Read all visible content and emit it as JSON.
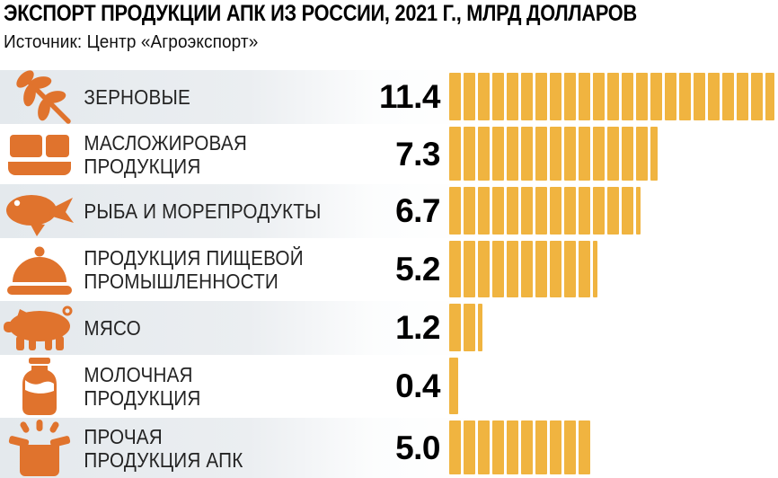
{
  "header": {
    "title": "ЭКСПОРТ ПРОДУКЦИИ АПК ИЗ РОССИИ, 2021 Г., МЛРД ДОЛЛАРОВ",
    "source": "Источник: Центр «Агроэкспорт»"
  },
  "colors": {
    "bar": "#F0B440",
    "icon": "#E0732D",
    "row_shade": "#E4E9ED"
  },
  "chart_data": {
    "type": "bar",
    "orientation": "horizontal",
    "title": "ЭКСПОРТ ПРОДУКЦИИ АПК ИЗ РОССИИ, 2021 Г., МЛРД ДОЛЛАРОВ",
    "source": "Центр «Агроэкспорт»",
    "unit": "млрд долларов",
    "segment_value": 0.5,
    "xlim": [
      0,
      11.5
    ],
    "categories": [
      "ЗЕРНОВЫЕ",
      "МАСЛОЖИРОВАЯ ПРОДУКЦИЯ",
      "РЫБА И МОРЕПРОДУКТЫ",
      "ПРОДУКЦИЯ ПИЩЕВОЙ ПРОМЫШЛЕННОСТИ",
      "МЯСО",
      "МОЛОЧНАЯ ПРОДУКЦИЯ",
      "ПРОЧАЯ ПРОДУКЦИЯ АПК"
    ],
    "values": [
      11.4,
      7.3,
      6.7,
      5.2,
      1.2,
      0.4,
      5.0
    ],
    "rows": [
      {
        "label_lines": [
          "ЗЕРНОВЫЕ"
        ],
        "value": 11.4,
        "value_text": "11.4",
        "icon": "wheat-icon"
      },
      {
        "label_lines": [
          "МАСЛОЖИРОВАЯ",
          "ПРОДУКЦИЯ"
        ],
        "value": 7.3,
        "value_text": "7.3",
        "icon": "butter-icon"
      },
      {
        "label_lines": [
          "РЫБА И МОРЕПРОДУКТЫ"
        ],
        "value": 6.7,
        "value_text": "6.7",
        "icon": "fish-icon"
      },
      {
        "label_lines": [
          "ПРОДУКЦИЯ ПИЩЕВОЙ",
          "ПРОМЫШЛЕННОСТИ"
        ],
        "value": 5.2,
        "value_text": "5.2",
        "icon": "cloche-icon"
      },
      {
        "label_lines": [
          "МЯСО"
        ],
        "value": 1.2,
        "value_text": "1.2",
        "icon": "pig-icon"
      },
      {
        "label_lines": [
          "МОЛОЧНАЯ",
          "ПРОДУКЦИЯ"
        ],
        "value": 0.4,
        "value_text": "0.4",
        "icon": "milk-bottle-icon"
      },
      {
        "label_lines": [
          "ПРОЧАЯ",
          "ПРОДУКЦИЯ АПК"
        ],
        "value": 5.0,
        "value_text": "5.0",
        "icon": "open-box-icon"
      }
    ]
  }
}
